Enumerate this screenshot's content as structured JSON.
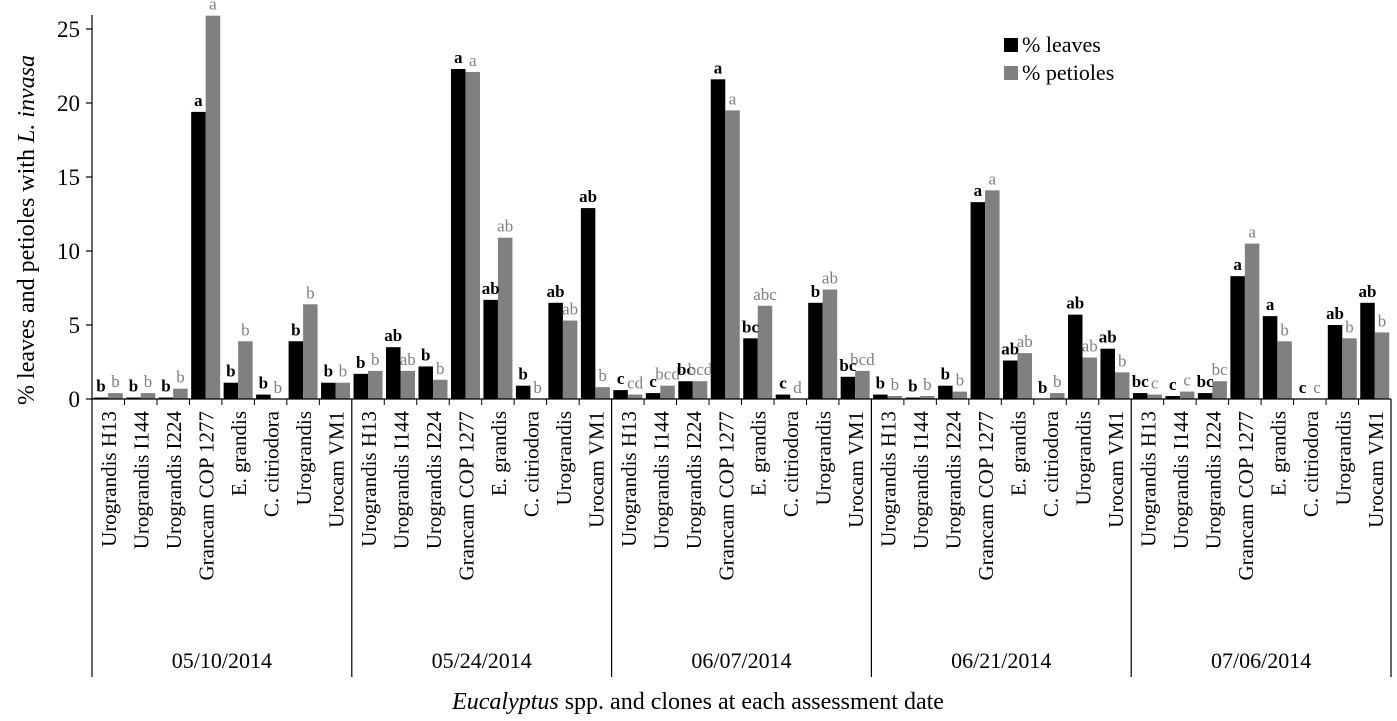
{
  "chart_data": {
    "type": "bar",
    "ylabel_prefix": "% leaves and petioles with ",
    "ylabel_species": "L. invasa",
    "xlabel_genus": "Eucalyptus",
    "xlabel_rest": " spp. and clones at each assessment date",
    "ylim": [
      0,
      25
    ],
    "yticks": [
      "0",
      "5",
      "10",
      "15",
      "20",
      "25"
    ],
    "legend": {
      "position": "top-right",
      "entries": [
        "% leaves",
        "% petioles"
      ]
    },
    "series_colors": [
      "#000000",
      "#808080"
    ],
    "label_colors": [
      "#000000",
      "#808080"
    ],
    "categories": [
      "Urograndis H13",
      "Urograndis I144",
      "Urograndis I224",
      "Grancam COP 1277",
      "E. grandis",
      "C. citriodora",
      "Urograndis",
      "Urocam VM1"
    ],
    "groups": [
      {
        "date": "05/10/2014",
        "leaves": [
          0.1,
          0.1,
          0.1,
          19.4,
          1.1,
          0.3,
          3.9,
          1.1
        ],
        "petioles": [
          0.4,
          0.4,
          0.7,
          25.9,
          3.9,
          0.0,
          6.4,
          1.1
        ],
        "leaf_letters": [
          "b",
          "b",
          "b",
          "a",
          "b",
          "b",
          "b",
          "b"
        ],
        "petiole_letters": [
          "b",
          "b",
          "b",
          "a",
          "b",
          "b",
          "b",
          "b"
        ]
      },
      {
        "date": "05/24/2014",
        "leaves": [
          1.7,
          3.5,
          2.2,
          22.3,
          6.7,
          0.9,
          6.5,
          12.9
        ],
        "petioles": [
          1.9,
          1.9,
          1.3,
          22.1,
          10.9,
          0.0,
          5.3,
          0.8
        ],
        "leaf_letters": [
          "b",
          "ab",
          "b",
          "a",
          "ab",
          "b",
          "ab",
          "ab"
        ],
        "petiole_letters": [
          "b",
          "ab",
          "b",
          "a",
          "ab",
          "b",
          "ab",
          "b"
        ]
      },
      {
        "date": "06/07/2014",
        "leaves": [
          0.6,
          0.4,
          1.2,
          21.6,
          4.1,
          0.3,
          6.5,
          1.5
        ],
        "petioles": [
          0.3,
          0.9,
          1.2,
          19.5,
          6.3,
          0.0,
          7.4,
          1.9
        ],
        "leaf_letters": [
          "c",
          "c",
          "bc",
          "a",
          "bc",
          "c",
          "b",
          "bc"
        ],
        "petiole_letters": [
          "cd",
          "bcd",
          "bcd",
          "a",
          "abc",
          "d",
          "ab",
          "bcd"
        ]
      },
      {
        "date": "06/21/2014",
        "leaves": [
          0.3,
          0.1,
          0.9,
          13.3,
          2.6,
          0.0,
          5.7,
          3.4
        ],
        "petioles": [
          0.2,
          0.2,
          0.5,
          14.1,
          3.1,
          0.4,
          2.8,
          1.8
        ],
        "leaf_letters": [
          "b",
          "b",
          "b",
          "a",
          "ab",
          "b",
          "ab",
          "ab"
        ],
        "petiole_letters": [
          "b",
          "b",
          "b",
          "a",
          "ab",
          "b",
          "ab",
          "b"
        ]
      },
      {
        "date": "07/06/2014",
        "leaves": [
          0.4,
          0.2,
          0.4,
          8.3,
          5.6,
          0.0,
          5.0,
          6.5
        ],
        "petioles": [
          0.3,
          0.5,
          1.2,
          10.5,
          3.9,
          0.0,
          4.1,
          4.5
        ],
        "leaf_letters": [
          "bc",
          "c",
          "bc",
          "a",
          "a",
          "c",
          "ab",
          "ab"
        ],
        "petiole_letters": [
          "c",
          "c",
          "bc",
          "a",
          "b",
          "c",
          "b",
          "b"
        ]
      }
    ]
  }
}
